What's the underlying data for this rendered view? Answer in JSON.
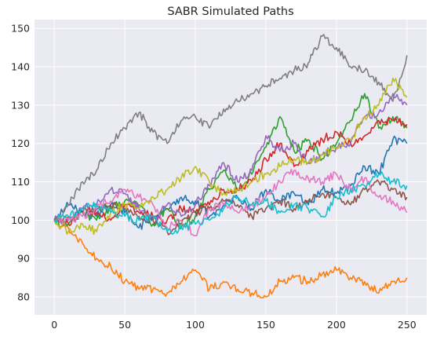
{
  "chart_data": {
    "type": "line",
    "title": "SABR Simulated Paths",
    "xlabel": "",
    "ylabel": "",
    "xlim": [
      -14,
      264
    ],
    "ylim": [
      75.3,
      152.3
    ],
    "xticks": [
      0,
      50,
      100,
      150,
      200,
      250
    ],
    "yticks": [
      80,
      90,
      100,
      110,
      120,
      130,
      140,
      150
    ],
    "grid": true,
    "legend": "none",
    "background": "#eaeaf2",
    "series": [
      {
        "color": "#1f77b4",
        "x": [
          0,
          10,
          20,
          30,
          40,
          50,
          60,
          70,
          80,
          90,
          100,
          110,
          120,
          130,
          140,
          150,
          160,
          170,
          180,
          190,
          200,
          210,
          220,
          230,
          240,
          250
        ],
        "values": [
          100,
          104,
          102,
          101,
          104,
          102,
          98,
          101,
          103,
          106,
          105,
          101,
          104,
          106,
          103,
          108,
          105,
          107,
          104,
          108,
          107,
          109,
          114,
          112,
          121,
          120
        ]
      },
      {
        "color": "#ff7f0e",
        "x": [
          0,
          10,
          20,
          30,
          40,
          50,
          60,
          70,
          80,
          90,
          100,
          110,
          120,
          130,
          140,
          150,
          160,
          170,
          180,
          190,
          200,
          210,
          220,
          230,
          240,
          250
        ],
        "values": [
          100,
          98,
          94,
          90,
          88,
          84,
          82,
          82,
          81,
          84,
          87,
          82,
          84,
          82,
          81,
          80,
          84,
          85,
          84,
          86,
          87,
          85,
          84,
          81,
          84,
          85
        ]
      },
      {
        "color": "#2ca02c",
        "x": [
          0,
          10,
          20,
          30,
          40,
          50,
          60,
          70,
          80,
          90,
          100,
          110,
          120,
          130,
          140,
          150,
          160,
          170,
          180,
          190,
          200,
          210,
          220,
          230,
          240,
          250
        ],
        "values": [
          100,
          99,
          102,
          100,
          103,
          105,
          104,
          99,
          103,
          98,
          101,
          108,
          113,
          108,
          112,
          119,
          127,
          118,
          121,
          116,
          120,
          126,
          133,
          124,
          127,
          124
        ]
      },
      {
        "color": "#d62728",
        "x": [
          0,
          10,
          20,
          30,
          40,
          50,
          60,
          70,
          80,
          90,
          100,
          110,
          120,
          130,
          140,
          150,
          160,
          170,
          180,
          190,
          200,
          210,
          220,
          230,
          240,
          250
        ],
        "values": [
          100,
          99,
          103,
          102,
          100,
          104,
          102,
          101,
          100,
          103,
          102,
          104,
          108,
          108,
          110,
          116,
          120,
          114,
          118,
          121,
          123,
          120,
          122,
          126,
          126,
          125
        ]
      },
      {
        "color": "#9467bd",
        "x": [
          0,
          10,
          20,
          30,
          40,
          50,
          60,
          70,
          80,
          90,
          100,
          110,
          120,
          130,
          140,
          150,
          160,
          170,
          180,
          190,
          200,
          210,
          220,
          230,
          240,
          250
        ],
        "values": [
          100,
          100,
          103,
          104,
          108,
          107,
          103,
          100,
          104,
          101,
          104,
          109,
          115,
          110,
          113,
          122,
          118,
          120,
          115,
          117,
          119,
          120,
          127,
          128,
          133,
          130
        ]
      },
      {
        "color": "#8c564b",
        "x": [
          0,
          10,
          20,
          30,
          40,
          50,
          60,
          70,
          80,
          90,
          100,
          110,
          120,
          130,
          140,
          150,
          160,
          170,
          180,
          190,
          200,
          210,
          220,
          230,
          240,
          250
        ],
        "values": [
          100,
          101,
          102,
          103,
          104,
          103,
          101,
          100,
          97,
          99,
          102,
          103,
          105,
          104,
          101,
          103,
          105,
          103,
          105,
          107,
          106,
          104,
          108,
          110,
          108,
          106
        ]
      },
      {
        "color": "#e377c2",
        "x": [
          0,
          10,
          20,
          30,
          40,
          50,
          60,
          70,
          80,
          90,
          100,
          110,
          120,
          130,
          140,
          150,
          160,
          170,
          180,
          190,
          200,
          210,
          220,
          230,
          240,
          250
        ],
        "values": [
          100,
          100,
          101,
          103,
          105,
          108,
          106,
          104,
          98,
          100,
          96,
          103,
          104,
          102,
          104,
          106,
          110,
          113,
          111,
          110,
          112,
          108,
          111,
          106,
          105,
          102
        ]
      },
      {
        "color": "#7f7f7f",
        "x": [
          0,
          10,
          20,
          30,
          40,
          50,
          60,
          70,
          80,
          90,
          100,
          110,
          120,
          130,
          140,
          150,
          160,
          170,
          180,
          190,
          200,
          210,
          220,
          230,
          240,
          250
        ],
        "values": [
          100,
          104,
          110,
          113,
          120,
          124,
          128,
          123,
          120,
          126,
          127,
          124,
          129,
          131,
          133,
          135,
          137,
          139,
          141,
          148,
          145,
          140,
          139,
          136,
          131,
          143
        ]
      },
      {
        "color": "#bcbd22",
        "x": [
          0,
          10,
          20,
          30,
          40,
          50,
          60,
          70,
          80,
          90,
          100,
          110,
          120,
          130,
          140,
          150,
          160,
          170,
          180,
          190,
          200,
          210,
          220,
          230,
          240,
          250
        ],
        "values": [
          100,
          97,
          99,
          97,
          102,
          104,
          103,
          106,
          108,
          111,
          114,
          110,
          107,
          108,
          110,
          112,
          114,
          116,
          115,
          117,
          119,
          121,
          127,
          130,
          137,
          132
        ]
      },
      {
        "color": "#17becf",
        "x": [
          0,
          10,
          20,
          30,
          40,
          50,
          60,
          70,
          80,
          90,
          100,
          110,
          120,
          130,
          140,
          150,
          160,
          170,
          180,
          190,
          200,
          210,
          220,
          230,
          240,
          250
        ],
        "values": [
          100,
          101,
          103,
          104,
          102,
          101,
          100,
          101,
          97,
          98,
          99,
          100,
          103,
          106,
          104,
          105,
          102,
          104,
          103,
          101,
          106,
          108,
          109,
          112,
          110,
          109
        ]
      }
    ]
  }
}
